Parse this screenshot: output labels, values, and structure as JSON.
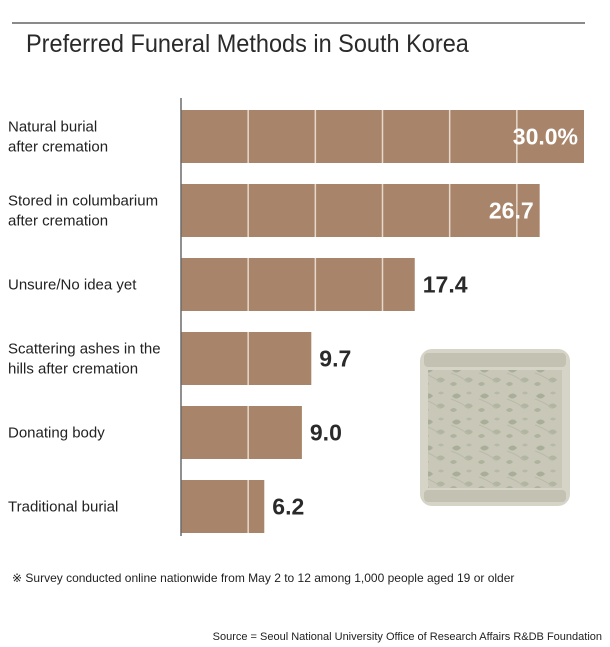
{
  "title": "Preferred Funeral Methods in South Korea",
  "note": "※ Survey conducted online nationwide from May 2 to 12 among 1,000 people aged 19 or older",
  "source": "Source = Seoul National University Office of Research Affairs R&DB Foundation",
  "colors": {
    "bar": "#a8856a",
    "bar_divider": "#e6d8cb",
    "axis": "#6b6b6b",
    "illustration_bg": "#c8c6b7",
    "illustration_leaf": "#a7ad98"
  },
  "chart_data": {
    "type": "bar",
    "orientation": "horizontal",
    "categories": [
      [
        "Natural burial",
        "after cremation"
      ],
      [
        "Stored in columbarium",
        "after cremation"
      ],
      [
        "Unsure/No idea yet"
      ],
      [
        "Scattering ashes in the",
        "hills after cremation"
      ],
      [
        "Donating body"
      ],
      [
        "Traditional burial"
      ]
    ],
    "values": [
      30.0,
      26.7,
      17.4,
      9.7,
      9.0,
      6.2
    ],
    "value_labels": [
      "30.0%",
      "26.7",
      "17.4",
      "9.7",
      "9.0",
      "6.2"
    ],
    "xlim": [
      0,
      30
    ],
    "grid": false,
    "segment_step": 5
  }
}
